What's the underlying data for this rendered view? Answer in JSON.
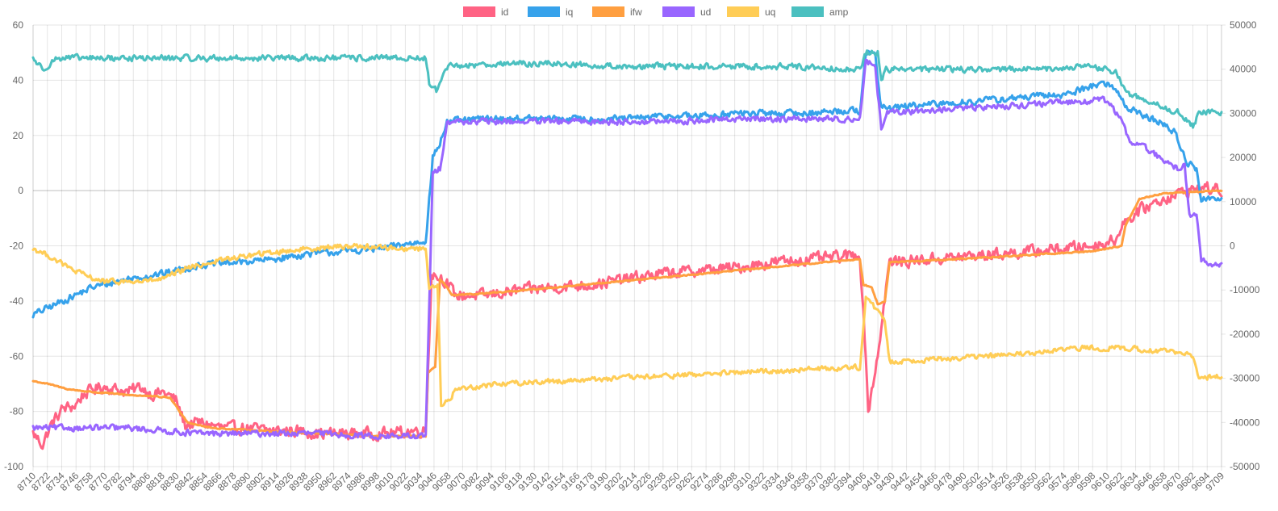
{
  "chart_data": {
    "type": "line",
    "legend_position": "top-center",
    "grid": true,
    "x_tick_labels": [
      "8710",
      "8722",
      "8734",
      "8746",
      "8758",
      "8770",
      "8782",
      "8794",
      "8806",
      "8818",
      "8830",
      "8842",
      "8854",
      "8866",
      "8878",
      "8890",
      "8902",
      "8914",
      "8926",
      "8938",
      "8950",
      "8962",
      "8974",
      "8986",
      "8998",
      "9010",
      "9022",
      "9034",
      "9046",
      "9058",
      "9070",
      "9082",
      "9094",
      "9106",
      "9118",
      "9130",
      "9142",
      "9154",
      "9166",
      "9178",
      "9190",
      "9202",
      "9214",
      "9226",
      "9238",
      "9250",
      "9262",
      "9274",
      "9286",
      "9298",
      "9310",
      "9322",
      "9334",
      "9346",
      "9358",
      "9370",
      "9382",
      "9394",
      "9406",
      "9418",
      "9430",
      "9442",
      "9454",
      "9466",
      "9478",
      "9490",
      "9502",
      "9514",
      "9526",
      "9538",
      "9550",
      "9562",
      "9574",
      "9586",
      "9598",
      "9610",
      "9622",
      "9634",
      "9646",
      "9658",
      "9670",
      "9682",
      "9694",
      "9709"
    ],
    "x_range": [
      8710,
      9709
    ],
    "y_left": {
      "min": -100,
      "max": 60,
      "step": 20,
      "ticks": [
        "60",
        "40",
        "20",
        "0",
        "-20",
        "-40",
        "-60",
        "-80",
        "-100"
      ]
    },
    "y_right": {
      "min": -50000,
      "max": 50000,
      "step": 10000,
      "ticks": [
        "50000",
        "40000",
        "30000",
        "20000",
        "10000",
        "0",
        "-10000",
        "-20000",
        "-30000",
        "-40000",
        "-50000"
      ]
    },
    "series": [
      {
        "name": "id",
        "color": "#ff6384",
        "axis": "left",
        "points": [
          [
            8710,
            -88
          ],
          [
            8718,
            -92
          ],
          [
            8725,
            -85
          ],
          [
            8735,
            -79
          ],
          [
            8745,
            -78
          ],
          [
            8752,
            -74
          ],
          [
            8760,
            -72
          ],
          [
            8770,
            -71
          ],
          [
            8780,
            -72
          ],
          [
            8790,
            -73
          ],
          [
            8800,
            -71
          ],
          [
            8810,
            -74
          ],
          [
            8820,
            -73
          ],
          [
            8830,
            -76
          ],
          [
            8838,
            -85
          ],
          [
            8850,
            -84
          ],
          [
            8870,
            -86
          ],
          [
            8890,
            -86
          ],
          [
            8910,
            -87
          ],
          [
            8930,
            -87
          ],
          [
            8950,
            -88
          ],
          [
            8970,
            -88
          ],
          [
            8990,
            -88
          ],
          [
            9010,
            -88
          ],
          [
            9030,
            -87
          ],
          [
            9040,
            -87
          ],
          [
            9045,
            -30
          ],
          [
            9055,
            -32
          ],
          [
            9065,
            -38
          ],
          [
            9090,
            -38
          ],
          [
            9120,
            -36
          ],
          [
            9150,
            -35
          ],
          [
            9180,
            -34
          ],
          [
            9210,
            -32
          ],
          [
            9240,
            -30
          ],
          [
            9270,
            -29
          ],
          [
            9300,
            -28
          ],
          [
            9330,
            -26
          ],
          [
            9360,
            -25
          ],
          [
            9390,
            -24
          ],
          [
            9405,
            -23
          ],
          [
            9410,
            -60
          ],
          [
            9412,
            -80
          ],
          [
            9418,
            -65
          ],
          [
            9423,
            -50
          ],
          [
            9427,
            -35
          ],
          [
            9430,
            -26
          ],
          [
            9460,
            -25
          ],
          [
            9490,
            -24
          ],
          [
            9520,
            -23
          ],
          [
            9550,
            -22
          ],
          [
            9575,
            -21
          ],
          [
            9600,
            -20
          ],
          [
            9620,
            -18
          ],
          [
            9625,
            -12
          ],
          [
            9635,
            -9
          ],
          [
            9645,
            -6
          ],
          [
            9660,
            -3
          ],
          [
            9680,
            0
          ],
          [
            9695,
            1
          ],
          [
            9709,
            0
          ]
        ],
        "noise": 3.0
      },
      {
        "name": "iq",
        "color": "#36a2eb",
        "axis": "left",
        "points": [
          [
            8710,
            -45
          ],
          [
            8730,
            -41
          ],
          [
            8760,
            -35
          ],
          [
            8790,
            -32
          ],
          [
            8820,
            -30
          ],
          [
            8850,
            -27
          ],
          [
            8880,
            -26
          ],
          [
            8910,
            -25
          ],
          [
            8940,
            -23
          ],
          [
            8970,
            -22
          ],
          [
            9000,
            -21
          ],
          [
            9030,
            -19
          ],
          [
            9040,
            -18
          ],
          [
            9046,
            12
          ],
          [
            9052,
            17
          ],
          [
            9058,
            25
          ],
          [
            9090,
            26
          ],
          [
            9120,
            26
          ],
          [
            9150,
            26
          ],
          [
            9180,
            26
          ],
          [
            9210,
            26
          ],
          [
            9240,
            27
          ],
          [
            9270,
            27
          ],
          [
            9300,
            28
          ],
          [
            9330,
            28
          ],
          [
            9360,
            28
          ],
          [
            9390,
            29
          ],
          [
            9405,
            29
          ],
          [
            9410,
            50
          ],
          [
            9418,
            49
          ],
          [
            9423,
            30
          ],
          [
            9430,
            30
          ],
          [
            9460,
            31
          ],
          [
            9490,
            32
          ],
          [
            9520,
            33
          ],
          [
            9550,
            34
          ],
          [
            9580,
            35
          ],
          [
            9600,
            38
          ],
          [
            9610,
            39
          ],
          [
            9620,
            37
          ],
          [
            9630,
            30
          ],
          [
            9645,
            27
          ],
          [
            9660,
            24
          ],
          [
            9670,
            21
          ],
          [
            9680,
            10
          ],
          [
            9688,
            8
          ],
          [
            9692,
            -3
          ],
          [
            9709,
            -3
          ]
        ],
        "noise": 1.7
      },
      {
        "name": "ifw",
        "color": "#ff9f40",
        "axis": "left",
        "points": [
          [
            8710,
            -69
          ],
          [
            8722,
            -70
          ],
          [
            8740,
            -72
          ],
          [
            8760,
            -73
          ],
          [
            8790,
            -74
          ],
          [
            8825,
            -75
          ],
          [
            8840,
            -84
          ],
          [
            8860,
            -86
          ],
          [
            8900,
            -87
          ],
          [
            8950,
            -88
          ],
          [
            9000,
            -89
          ],
          [
            9040,
            -89
          ],
          [
            9042,
            -66
          ],
          [
            9048,
            -64
          ],
          [
            9052,
            -32
          ],
          [
            9058,
            -35
          ],
          [
            9062,
            -38
          ],
          [
            9100,
            -37
          ],
          [
            9150,
            -35
          ],
          [
            9200,
            -33
          ],
          [
            9250,
            -31
          ],
          [
            9300,
            -29
          ],
          [
            9350,
            -27
          ],
          [
            9400,
            -25
          ],
          [
            9405,
            -25
          ],
          [
            9408,
            -34
          ],
          [
            9415,
            -35
          ],
          [
            9420,
            -41
          ],
          [
            9426,
            -40
          ],
          [
            9430,
            -26
          ],
          [
            9480,
            -25
          ],
          [
            9520,
            -24
          ],
          [
            9560,
            -23
          ],
          [
            9600,
            -22
          ],
          [
            9625,
            -20
          ],
          [
            9628,
            -13
          ],
          [
            9640,
            -3
          ],
          [
            9650,
            -2
          ],
          [
            9660,
            -1
          ],
          [
            9709,
            0
          ]
        ],
        "noise": 0.3
      },
      {
        "name": "ud",
        "color": "#9966ff",
        "axis": "left",
        "points": [
          [
            8710,
            -86
          ],
          [
            8730,
            -86
          ],
          [
            8760,
            -86
          ],
          [
            8790,
            -86
          ],
          [
            8820,
            -87
          ],
          [
            8850,
            -88
          ],
          [
            8900,
            -88
          ],
          [
            8950,
            -88
          ],
          [
            9000,
            -89
          ],
          [
            9040,
            -89
          ],
          [
            9046,
            6
          ],
          [
            9052,
            8
          ],
          [
            9058,
            25
          ],
          [
            9090,
            25
          ],
          [
            9150,
            25
          ],
          [
            9200,
            25
          ],
          [
            9250,
            25
          ],
          [
            9300,
            26
          ],
          [
            9350,
            26
          ],
          [
            9400,
            26
          ],
          [
            9405,
            26
          ],
          [
            9410,
            47
          ],
          [
            9418,
            45
          ],
          [
            9423,
            22
          ],
          [
            9428,
            28
          ],
          [
            9460,
            29
          ],
          [
            9500,
            30
          ],
          [
            9540,
            31
          ],
          [
            9580,
            32
          ],
          [
            9610,
            33
          ],
          [
            9618,
            30
          ],
          [
            9625,
            25
          ],
          [
            9632,
            18
          ],
          [
            9640,
            17
          ],
          [
            9650,
            14
          ],
          [
            9660,
            11
          ],
          [
            9672,
            8
          ],
          [
            9678,
            9
          ],
          [
            9682,
            -9
          ],
          [
            9688,
            -8
          ],
          [
            9692,
            -25
          ],
          [
            9700,
            -27
          ],
          [
            9709,
            -27
          ]
        ],
        "noise": 1.5
      },
      {
        "name": "uq",
        "color": "#ffcd56",
        "axis": "left",
        "points": [
          [
            8710,
            -21
          ],
          [
            8725,
            -24
          ],
          [
            8740,
            -28
          ],
          [
            8755,
            -31
          ],
          [
            8770,
            -33
          ],
          [
            8800,
            -33
          ],
          [
            8820,
            -32
          ],
          [
            8840,
            -28
          ],
          [
            8870,
            -25
          ],
          [
            8900,
            -23
          ],
          [
            8940,
            -21
          ],
          [
            8980,
            -20
          ],
          [
            9020,
            -21
          ],
          [
            9040,
            -21
          ],
          [
            9043,
            -35
          ],
          [
            9050,
            -34
          ],
          [
            9053,
            -78
          ],
          [
            9060,
            -76
          ],
          [
            9065,
            -72
          ],
          [
            9100,
            -70
          ],
          [
            9150,
            -69
          ],
          [
            9200,
            -68
          ],
          [
            9250,
            -67
          ],
          [
            9300,
            -66
          ],
          [
            9350,
            -65
          ],
          [
            9400,
            -64
          ],
          [
            9405,
            -64
          ],
          [
            9410,
            -38
          ],
          [
            9420,
            -44
          ],
          [
            9426,
            -47
          ],
          [
            9430,
            -62
          ],
          [
            9470,
            -61
          ],
          [
            9510,
            -60
          ],
          [
            9550,
            -59
          ],
          [
            9590,
            -57
          ],
          [
            9620,
            -57
          ],
          [
            9660,
            -58
          ],
          [
            9685,
            -60
          ],
          [
            9690,
            -68
          ],
          [
            9709,
            -67
          ]
        ],
        "noise": 1.3
      },
      {
        "name": "amp",
        "color": "#4bc0c0",
        "axis": "left",
        "points": [
          [
            8710,
            48
          ],
          [
            8718,
            44
          ],
          [
            8730,
            48
          ],
          [
            8760,
            48
          ],
          [
            8800,
            48
          ],
          [
            8850,
            48
          ],
          [
            8900,
            48
          ],
          [
            8950,
            48
          ],
          [
            9000,
            48
          ],
          [
            9040,
            48
          ],
          [
            9043,
            39
          ],
          [
            9050,
            36
          ],
          [
            9055,
            42
          ],
          [
            9060,
            45
          ],
          [
            9100,
            46
          ],
          [
            9150,
            46
          ],
          [
            9200,
            45
          ],
          [
            9250,
            45
          ],
          [
            9300,
            45
          ],
          [
            9350,
            45
          ],
          [
            9400,
            44
          ],
          [
            9405,
            44
          ],
          [
            9410,
            50
          ],
          [
            9420,
            50
          ],
          [
            9423,
            39
          ],
          [
            9427,
            44
          ],
          [
            9470,
            44
          ],
          [
            9510,
            44
          ],
          [
            9560,
            44
          ],
          [
            9600,
            45
          ],
          [
            9620,
            43
          ],
          [
            9630,
            35
          ],
          [
            9645,
            33
          ],
          [
            9660,
            30
          ],
          [
            9675,
            28
          ],
          [
            9685,
            23
          ],
          [
            9690,
            28
          ],
          [
            9700,
            29
          ],
          [
            9709,
            28
          ]
        ],
        "noise": 1.5
      }
    ]
  }
}
